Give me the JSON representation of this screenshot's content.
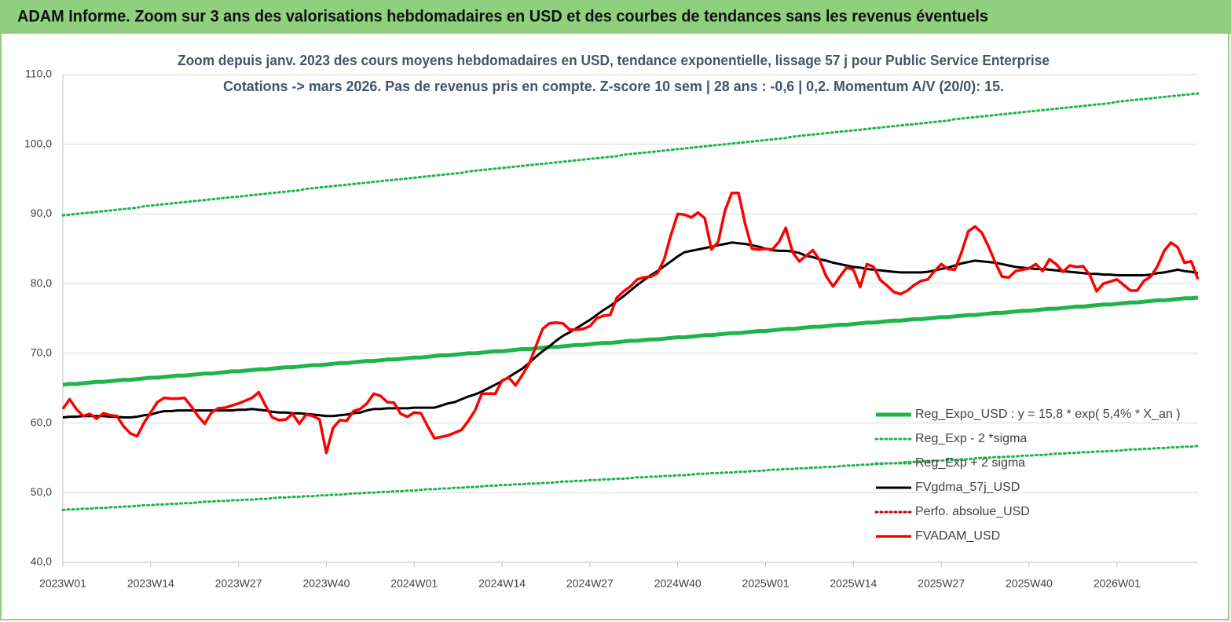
{
  "header": {
    "title": "ADAM Informe. Zoom sur 3 ans des valorisations hebdomadaires en USD et des courbes de tendances sans les revenus éventuels"
  },
  "chart_data": {
    "type": "line",
    "title": "Zoom depuis janv. 2023 des cours moyens hebdomadaires en USD, tendance exponentielle, lissage 57 j pour Public Service Enterprise",
    "subtitle": "Cotations -> mars 2026. Pas de revenus pris en compte. Z-score 10 sem | 28 ans : -0,6 | 0,2. Momentum A/V (20/0): 15.",
    "categories": [
      "2023W01",
      null,
      null,
      null,
      null,
      null,
      null,
      null,
      null,
      null,
      null,
      null,
      null,
      "2023W14",
      null,
      null,
      null,
      null,
      null,
      null,
      null,
      null,
      null,
      null,
      null,
      null,
      "2023W27",
      null,
      null,
      null,
      null,
      null,
      null,
      null,
      null,
      null,
      null,
      null,
      null,
      "2023W40",
      null,
      null,
      null,
      null,
      null,
      null,
      null,
      null,
      null,
      null,
      null,
      null,
      "2024W01",
      null,
      null,
      null,
      null,
      null,
      null,
      null,
      null,
      null,
      null,
      null,
      null,
      "2024W14",
      null,
      null,
      null,
      null,
      null,
      null,
      null,
      null,
      null,
      null,
      null,
      null,
      "2024W27",
      null,
      null,
      null,
      null,
      null,
      null,
      null,
      null,
      null,
      null,
      null,
      null,
      "2024W40",
      null,
      null,
      null,
      null,
      null,
      null,
      null,
      null,
      null,
      null,
      null,
      null,
      "2025W01",
      null,
      null,
      null,
      null,
      null,
      null,
      null,
      null,
      null,
      null,
      null,
      null,
      "2025W14",
      null,
      null,
      null,
      null,
      null,
      null,
      null,
      null,
      null,
      null,
      null,
      null,
      "2025W27",
      null,
      null,
      null,
      null,
      null,
      null,
      null,
      null,
      null,
      null,
      null,
      null,
      "2025W40",
      null,
      null,
      null,
      null,
      null,
      null,
      null,
      null,
      null,
      null,
      null,
      null,
      "2026W01",
      null,
      null,
      null,
      null,
      null,
      null,
      null,
      null,
      null,
      null,
      null,
      null
    ],
    "ylim": [
      40,
      110
    ],
    "yticks": [
      {
        "value": 40,
        "label": "40,0"
      },
      {
        "value": 50,
        "label": "50,0"
      },
      {
        "value": 60,
        "label": "60,0"
      },
      {
        "value": 70,
        "label": "70,0"
      },
      {
        "value": 80,
        "label": "80,0"
      },
      {
        "value": 90,
        "label": "90,0"
      },
      {
        "value": 100,
        "label": "100,0"
      },
      {
        "value": 110,
        "label": "110,0"
      }
    ],
    "grid": true,
    "series": [
      {
        "name": "Reg_Expo_USD : y = 15,8 * exp( 5,4% *  X_an )",
        "color": "#1fb44a",
        "style": "solid",
        "width": 5,
        "values": [
          65.5,
          65.6,
          65.6,
          65.7,
          65.8,
          65.9,
          65.9,
          66.0,
          66.1,
          66.2,
          66.2,
          66.3,
          66.4,
          66.5,
          66.5,
          66.6,
          66.7,
          66.8,
          66.8,
          66.9,
          67.0,
          67.1,
          67.1,
          67.2,
          67.3,
          67.4,
          67.4,
          67.5,
          67.6,
          67.7,
          67.7,
          67.8,
          67.9,
          68.0,
          68.0,
          68.1,
          68.2,
          68.3,
          68.3,
          68.4,
          68.5,
          68.6,
          68.6,
          68.7,
          68.8,
          68.9,
          68.9,
          69.0,
          69.1,
          69.1,
          69.2,
          69.3,
          69.4,
          69.4,
          69.5,
          69.6,
          69.7,
          69.7,
          69.8,
          69.9,
          70.0,
          70.0,
          70.1,
          70.2,
          70.3,
          70.3,
          70.4,
          70.5,
          70.6,
          70.6,
          70.7,
          70.8,
          70.9,
          70.9,
          71.0,
          71.1,
          71.2,
          71.2,
          71.3,
          71.4,
          71.5,
          71.5,
          71.6,
          71.7,
          71.8,
          71.8,
          71.9,
          72.0,
          72.0,
          72.1,
          72.2,
          72.3,
          72.3,
          72.4,
          72.5,
          72.6,
          72.6,
          72.7,
          72.8,
          72.9,
          72.9,
          73.0,
          73.1,
          73.2,
          73.2,
          73.3,
          73.4,
          73.5,
          73.5,
          73.6,
          73.7,
          73.8,
          73.8,
          73.9,
          74.0,
          74.1,
          74.1,
          74.2,
          74.3,
          74.4,
          74.4,
          74.5,
          74.6,
          74.7,
          74.7,
          74.8,
          74.9,
          74.9,
          75.0,
          75.1,
          75.2,
          75.2,
          75.3,
          75.4,
          75.5,
          75.5,
          75.6,
          75.7,
          75.8,
          75.8,
          75.9,
          76.0,
          76.1,
          76.1,
          76.2,
          76.3,
          76.4,
          76.4,
          76.5,
          76.6,
          76.7,
          76.7,
          76.8,
          76.9,
          77.0,
          77.0,
          77.1,
          77.2,
          77.3,
          77.3,
          77.4,
          77.5,
          77.6,
          77.6,
          77.7,
          77.8,
          77.9,
          77.9,
          78.0
        ]
      },
      {
        "name": "Reg_Exp - 2 *sigma",
        "color": "#1fb44a",
        "style": "dotted",
        "width": 3,
        "values": [
          47.5,
          47.6,
          47.6,
          47.7,
          47.7,
          47.8,
          47.8,
          47.9,
          47.9,
          48.0,
          48.0,
          48.1,
          48.2,
          48.2,
          48.3,
          48.3,
          48.4,
          48.4,
          48.5,
          48.5,
          48.6,
          48.7,
          48.7,
          48.8,
          48.8,
          48.9,
          48.9,
          49.0,
          49.0,
          49.1,
          49.1,
          49.2,
          49.3,
          49.3,
          49.4,
          49.4,
          49.5,
          49.5,
          49.6,
          49.6,
          49.7,
          49.7,
          49.8,
          49.9,
          49.9,
          50.0,
          50.0,
          50.1,
          50.1,
          50.2,
          50.2,
          50.3,
          50.3,
          50.4,
          50.5,
          50.5,
          50.6,
          50.6,
          50.7,
          50.7,
          50.8,
          50.8,
          50.9,
          51.0,
          51.0,
          51.1,
          51.1,
          51.2,
          51.2,
          51.3,
          51.3,
          51.4,
          51.4,
          51.5,
          51.6,
          51.6,
          51.7,
          51.7,
          51.8,
          51.8,
          51.9,
          51.9,
          52.0,
          52.0,
          52.1,
          52.2,
          52.2,
          52.3,
          52.3,
          52.4,
          52.4,
          52.5,
          52.5,
          52.6,
          52.7,
          52.7,
          52.8,
          52.8,
          52.9,
          52.9,
          53.0,
          53.0,
          53.1,
          53.1,
          53.2,
          53.3,
          53.3,
          53.4,
          53.4,
          53.5,
          53.5,
          53.6,
          53.6,
          53.7,
          53.7,
          53.8,
          53.9,
          53.9,
          54.0,
          54.0,
          54.1,
          54.1,
          54.2,
          54.2,
          54.3,
          54.4,
          54.4,
          54.5,
          54.5,
          54.6,
          54.6,
          54.7,
          54.7,
          54.8,
          54.8,
          54.9,
          55.0,
          55.0,
          55.1,
          55.1,
          55.2,
          55.2,
          55.3,
          55.3,
          55.4,
          55.4,
          55.5,
          55.6,
          55.6,
          55.7,
          55.7,
          55.8,
          55.8,
          55.9,
          55.9,
          56.0,
          56.0,
          56.1,
          56.2,
          56.2,
          56.3,
          56.3,
          56.4,
          56.4,
          56.5,
          56.5,
          56.6,
          56.6,
          56.7
        ]
      },
      {
        "name": "Reg_Exp + 2 sigma",
        "color": "#1fb44a",
        "style": "dotted",
        "width": 3,
        "values": [
          89.8,
          89.9,
          90.0,
          90.1,
          90.2,
          90.3,
          90.4,
          90.5,
          90.6,
          90.7,
          90.8,
          90.9,
          91.1,
          91.2,
          91.3,
          91.4,
          91.5,
          91.6,
          91.7,
          91.8,
          91.9,
          92.0,
          92.1,
          92.2,
          92.3,
          92.4,
          92.5,
          92.6,
          92.7,
          92.8,
          92.9,
          93.0,
          93.1,
          93.2,
          93.3,
          93.4,
          93.6,
          93.7,
          93.8,
          93.9,
          94.0,
          94.1,
          94.2,
          94.3,
          94.4,
          94.5,
          94.6,
          94.7,
          94.8,
          94.9,
          95.0,
          95.1,
          95.2,
          95.3,
          95.4,
          95.5,
          95.6,
          95.7,
          95.8,
          95.9,
          96.1,
          96.2,
          96.3,
          96.4,
          96.5,
          96.6,
          96.7,
          96.8,
          96.9,
          97.0,
          97.1,
          97.2,
          97.3,
          97.4,
          97.5,
          97.6,
          97.7,
          97.8,
          97.9,
          98.0,
          98.1,
          98.2,
          98.3,
          98.5,
          98.6,
          98.7,
          98.8,
          98.9,
          99.0,
          99.1,
          99.2,
          99.3,
          99.4,
          99.5,
          99.6,
          99.7,
          99.8,
          99.9,
          100.0,
          100.1,
          100.2,
          100.3,
          100.4,
          100.5,
          100.6,
          100.7,
          100.8,
          100.9,
          101.1,
          101.2,
          101.3,
          101.4,
          101.5,
          101.6,
          101.7,
          101.8,
          101.9,
          102.0,
          102.1,
          102.2,
          102.3,
          102.4,
          102.5,
          102.6,
          102.7,
          102.8,
          102.9,
          103.0,
          103.1,
          103.2,
          103.3,
          103.4,
          103.6,
          103.7,
          103.8,
          103.9,
          104.0,
          104.1,
          104.2,
          104.3,
          104.4,
          104.5,
          104.6,
          104.7,
          104.8,
          104.9,
          105.0,
          105.1,
          105.2,
          105.3,
          105.4,
          105.5,
          105.6,
          105.7,
          105.8,
          105.9,
          106.1,
          106.2,
          106.3,
          106.4,
          106.5,
          106.6,
          106.7,
          106.8,
          106.9,
          107.0,
          107.1,
          107.2,
          107.3
        ]
      },
      {
        "name": "FVgdma_57j_USD",
        "color": "#000000",
        "style": "solid",
        "width": 3,
        "values": [
          60.8,
          60.9,
          60.9,
          61.0,
          61.0,
          61.0,
          61.0,
          60.9,
          60.9,
          60.8,
          60.8,
          60.9,
          61.1,
          61.2,
          61.5,
          61.7,
          61.7,
          61.8,
          61.8,
          61.8,
          61.8,
          61.8,
          61.8,
          61.8,
          61.8,
          61.8,
          61.9,
          61.9,
          62.0,
          61.9,
          61.8,
          61.6,
          61.5,
          61.5,
          61.4,
          61.4,
          61.3,
          61.2,
          61.1,
          61.0,
          61.0,
          61.1,
          61.2,
          61.4,
          61.5,
          61.8,
          62.0,
          62.0,
          62.1,
          62.1,
          62.1,
          62.1,
          62.2,
          62.2,
          62.2,
          62.2,
          62.5,
          62.8,
          63.0,
          63.4,
          63.8,
          64.1,
          64.5,
          65.0,
          65.5,
          66.0,
          66.6,
          67.2,
          67.8,
          68.6,
          69.5,
          70.3,
          71.0,
          71.8,
          72.5,
          73.0,
          73.6,
          74.2,
          74.8,
          75.5,
          76.2,
          76.8,
          77.5,
          78.2,
          79.0,
          79.8,
          80.5,
          81.2,
          81.8,
          82.5,
          83.2,
          83.9,
          84.5,
          84.7,
          84.9,
          85.1,
          85.3,
          85.5,
          85.7,
          85.9,
          85.8,
          85.7,
          85.5,
          85.3,
          85.0,
          84.8,
          84.7,
          84.7,
          84.6,
          84.4,
          84.0,
          83.8,
          83.5,
          83.3,
          83.0,
          82.8,
          82.6,
          82.4,
          82.3,
          82.1,
          82.0,
          81.9,
          81.8,
          81.7,
          81.6,
          81.6,
          81.6,
          81.6,
          81.7,
          81.9,
          82.1,
          82.3,
          82.6,
          82.9,
          83.1,
          83.3,
          83.2,
          83.1,
          83.0,
          82.8,
          82.6,
          82.4,
          82.3,
          82.2,
          82.1,
          82.1,
          82.0,
          81.9,
          81.8,
          81.7,
          81.6,
          81.5,
          81.4,
          81.4,
          81.3,
          81.3,
          81.2,
          81.2,
          81.2,
          81.2,
          81.2,
          81.3,
          81.5,
          81.6,
          81.8,
          82.0,
          81.8,
          81.7,
          81.5
        ]
      },
      {
        "name": "Perfo. absolue_USD",
        "color": "#c00000",
        "style": "dotted",
        "width": 3
      },
      {
        "name": "FVADAM_USD",
        "color": "#ff0000",
        "style": "solid",
        "width": 3.5,
        "values": [
          62.0,
          63.4,
          62.0,
          61.0,
          61.3,
          60.6,
          61.4,
          61.1,
          61.0,
          59.5,
          58.5,
          58.1,
          60.0,
          61.5,
          63.0,
          63.6,
          63.5,
          63.5,
          63.6,
          62.4,
          61.0,
          59.9,
          61.5,
          62.1,
          62.2,
          62.5,
          62.8,
          63.2,
          63.6,
          64.4,
          62.5,
          60.8,
          60.4,
          60.5,
          61.3,
          59.9,
          61.2,
          61.0,
          60.5,
          55.7,
          59.3,
          60.4,
          60.3,
          61.7,
          62.0,
          62.8,
          64.2,
          63.9,
          63.0,
          62.9,
          61.3,
          60.9,
          61.5,
          61.4,
          59.5,
          57.8,
          58.0,
          58.2,
          58.6,
          59.0,
          60.3,
          61.8,
          64.2,
          64.2,
          64.2,
          66.1,
          66.5,
          65.4,
          66.9,
          68.5,
          71.0,
          73.5,
          74.3,
          74.4,
          74.3,
          73.4,
          73.4,
          73.5,
          73.9,
          75.0,
          75.4,
          75.5,
          78.0,
          78.9,
          79.6,
          80.6,
          80.9,
          81.0,
          81.5,
          83.5,
          87.0,
          90.0,
          89.9,
          89.5,
          90.2,
          89.4,
          84.9,
          86.0,
          90.5,
          93.0,
          93.0,
          88.5,
          85.0,
          84.9,
          85.0,
          84.9,
          86.0,
          88.0,
          84.5,
          83.2,
          84.0,
          84.8,
          83.4,
          81.0,
          79.6,
          81.0,
          82.3,
          82.0,
          79.5,
          82.8,
          82.4,
          80.5,
          79.7,
          78.8,
          78.5,
          79.0,
          79.8,
          80.4,
          80.6,
          81.8,
          82.8,
          82.1,
          82.0,
          84.5,
          87.5,
          88.2,
          87.3,
          85.3,
          83.0,
          81.0,
          80.9,
          81.8,
          82.0,
          82.2,
          82.8,
          81.8,
          83.5,
          82.8,
          81.7,
          82.6,
          82.4,
          82.5,
          81.2,
          78.9,
          80.0,
          80.3,
          80.6,
          79.8,
          79.0,
          79.0,
          80.4,
          81.0,
          82.5,
          84.7,
          85.9,
          85.2,
          83.0,
          83.2,
          80.6
        ]
      }
    ]
  }
}
